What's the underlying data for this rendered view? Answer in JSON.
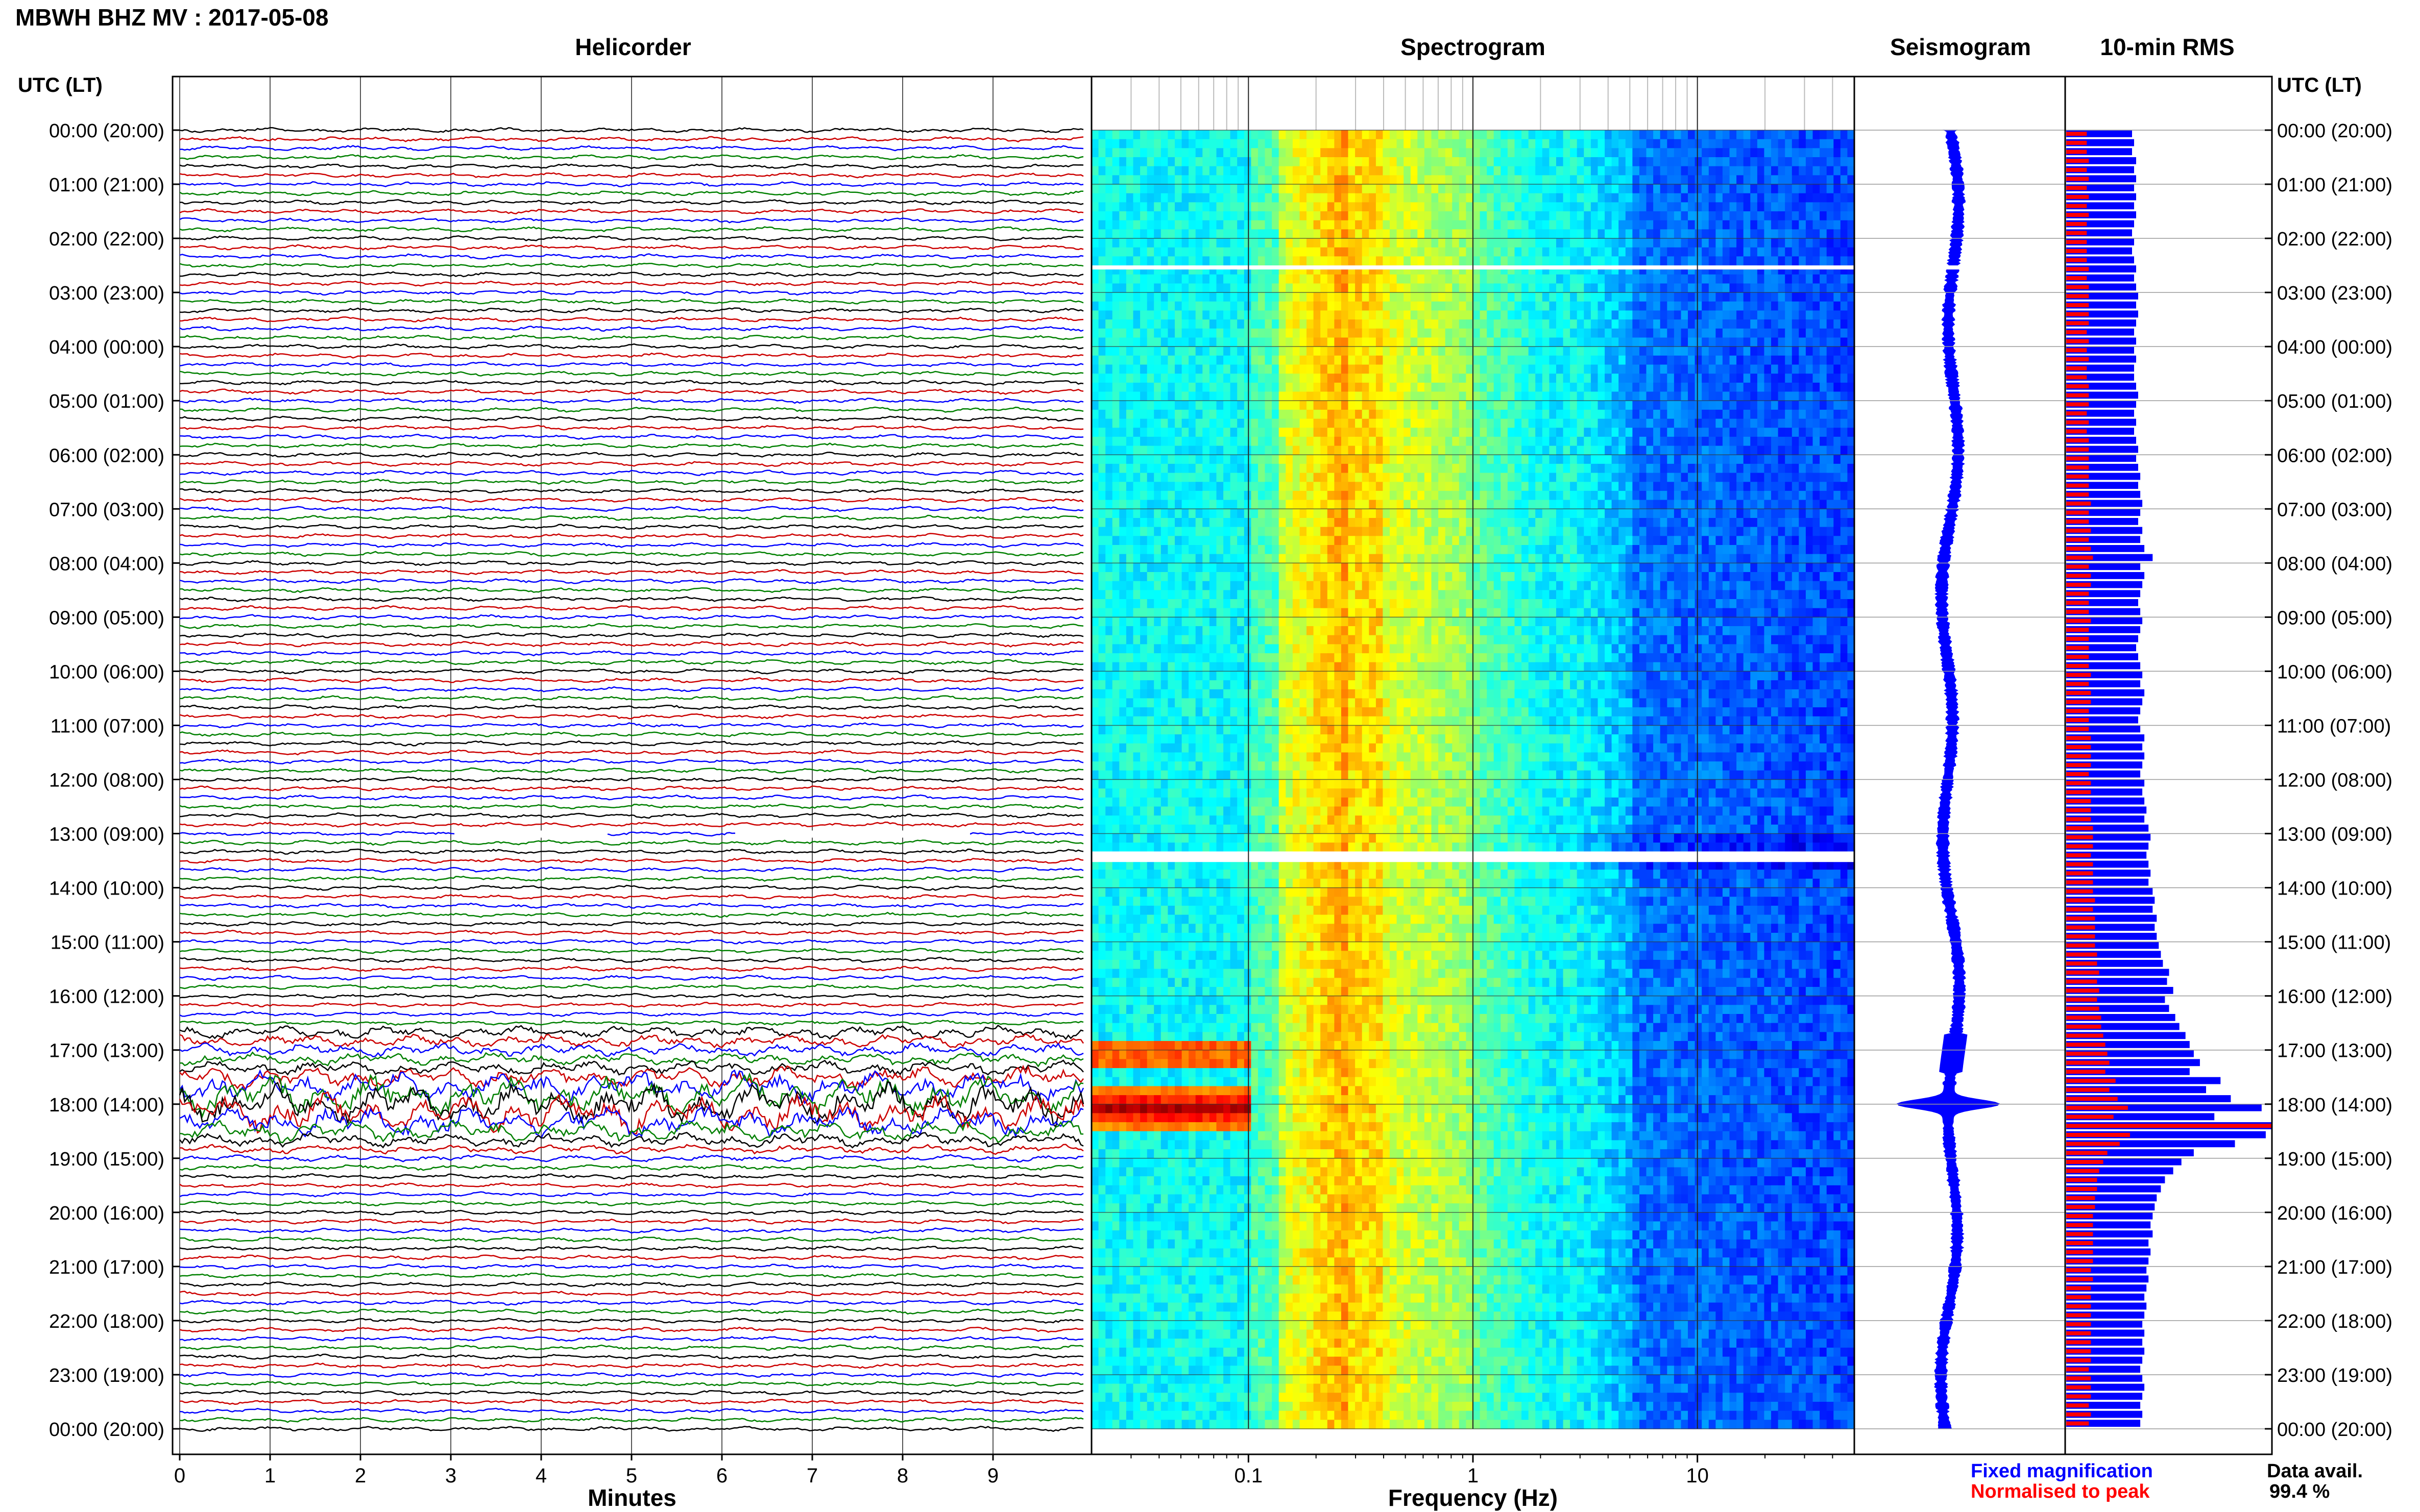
{
  "station_title": "MBWH BHZ MV : 2017-05-08",
  "time_header_left": "UTC (LT)",
  "time_header_right": "UTC (LT)",
  "panels": {
    "helicorder": "Helicorder",
    "spectrogram": "Spectrogram",
    "seismogram": "Seismogram",
    "rms": "10-min RMS"
  },
  "hour_labels": [
    "00:00 (20:00)",
    "01:00 (21:00)",
    "02:00 (22:00)",
    "03:00 (23:00)",
    "04:00 (00:00)",
    "05:00 (01:00)",
    "06:00 (02:00)",
    "07:00 (03:00)",
    "08:00 (04:00)",
    "09:00 (05:00)",
    "10:00 (06:00)",
    "11:00 (07:00)",
    "12:00 (08:00)",
    "13:00 (09:00)",
    "14:00 (10:00)",
    "15:00 (11:00)",
    "16:00 (12:00)",
    "17:00 (13:00)",
    "18:00 (14:00)",
    "19:00 (15:00)",
    "20:00 (16:00)",
    "21:00 (17:00)",
    "22:00 (18:00)",
    "23:00 (19:00)",
    "00:00 (20:00)"
  ],
  "minutes_axis": {
    "label": "Minutes",
    "ticks": [
      "0",
      "1",
      "2",
      "3",
      "4",
      "5",
      "6",
      "7",
      "8",
      "9"
    ]
  },
  "frequency_axis": {
    "label": "Frequency (Hz)",
    "ticks": [
      "0.1",
      "1",
      "10"
    ],
    "scale": "log",
    "range": [
      0.02,
      50
    ]
  },
  "legend": {
    "fixed": "Fixed magnification",
    "normalised": "Normalised to peak",
    "fixed_color": "#0000ff",
    "normalised_color": "#ff0000"
  },
  "data_avail": {
    "label": "Data avail.",
    "value": "99.4 %"
  },
  "chart_data": {
    "type": "heatmap",
    "helicorder": {
      "line_colors": [
        "#000000",
        "#cc0000",
        "#0000ff",
        "#008000"
      ],
      "rows": 144,
      "minutes_per_row": 10,
      "event_hour": 18,
      "gaps_utc": [
        "02:30",
        "13:20"
      ]
    },
    "spectrogram": {
      "colormap": "jet",
      "event": {
        "time_utc": "18:00",
        "freq_hz": [
          0.03,
          0.09
        ]
      },
      "gaps_utc": [
        "02:30",
        "13:20"
      ]
    },
    "rms": {
      "bin_minutes": 10,
      "fixed": [
        0.32,
        0.33,
        0.32,
        0.34,
        0.33,
        0.34,
        0.33,
        0.34,
        0.33,
        0.34,
        0.33,
        0.32,
        0.33,
        0.32,
        0.33,
        0.34,
        0.33,
        0.34,
        0.35,
        0.34,
        0.35,
        0.34,
        0.33,
        0.34,
        0.33,
        0.34,
        0.33,
        0.33,
        0.34,
        0.35,
        0.34,
        0.33,
        0.34,
        0.33,
        0.34,
        0.35,
        0.34,
        0.35,
        0.36,
        0.35,
        0.36,
        0.37,
        0.36,
        0.35,
        0.37,
        0.36,
        0.38,
        0.42,
        0.36,
        0.38,
        0.37,
        0.36,
        0.35,
        0.36,
        0.37,
        0.36,
        0.35,
        0.34,
        0.35,
        0.36,
        0.37,
        0.36,
        0.38,
        0.37,
        0.36,
        0.35,
        0.36,
        0.38,
        0.37,
        0.38,
        0.37,
        0.36,
        0.38,
        0.37,
        0.38,
        0.39,
        0.38,
        0.4,
        0.41,
        0.4,
        0.39,
        0.4,
        0.41,
        0.4,
        0.42,
        0.43,
        0.42,
        0.44,
        0.43,
        0.44,
        0.45,
        0.46,
        0.47,
        0.5,
        0.49,
        0.52,
        0.48,
        0.5,
        0.53,
        0.55,
        0.58,
        0.6,
        0.62,
        0.65,
        0.6,
        0.75,
        0.68,
        0.8,
        0.95,
        0.72,
        1.0,
        0.97,
        0.82,
        0.62,
        0.56,
        0.52,
        0.48,
        0.46,
        0.44,
        0.43,
        0.42,
        0.41,
        0.42,
        0.4,
        0.41,
        0.4,
        0.39,
        0.4,
        0.39,
        0.38,
        0.39,
        0.38,
        0.37,
        0.38,
        0.37,
        0.38,
        0.37,
        0.36,
        0.37,
        0.38,
        0.37,
        0.36,
        0.37,
        0.36
      ],
      "normalised": [
        0.1,
        0.1,
        0.1,
        0.11,
        0.1,
        0.11,
        0.1,
        0.11,
        0.1,
        0.11,
        0.1,
        0.1,
        0.1,
        0.1,
        0.1,
        0.11,
        0.1,
        0.11,
        0.11,
        0.11,
        0.11,
        0.11,
        0.1,
        0.11,
        0.1,
        0.11,
        0.1,
        0.1,
        0.11,
        0.11,
        0.11,
        0.1,
        0.11,
        0.1,
        0.11,
        0.11,
        0.11,
        0.11,
        0.11,
        0.11,
        0.11,
        0.12,
        0.11,
        0.11,
        0.12,
        0.11,
        0.12,
        0.13,
        0.11,
        0.12,
        0.12,
        0.11,
        0.11,
        0.11,
        0.12,
        0.11,
        0.11,
        0.11,
        0.11,
        0.11,
        0.12,
        0.11,
        0.12,
        0.12,
        0.11,
        0.11,
        0.11,
        0.12,
        0.12,
        0.12,
        0.12,
        0.11,
        0.12,
        0.12,
        0.12,
        0.12,
        0.12,
        0.13,
        0.13,
        0.13,
        0.12,
        0.13,
        0.13,
        0.13,
        0.13,
        0.14,
        0.13,
        0.14,
        0.14,
        0.14,
        0.14,
        0.15,
        0.15,
        0.16,
        0.15,
        0.16,
        0.15,
        0.16,
        0.17,
        0.17,
        0.18,
        0.19,
        0.2,
        0.21,
        0.19,
        0.24,
        0.21,
        0.25,
        0.3,
        0.23,
        1.0,
        0.31,
        0.26,
        0.2,
        0.18,
        0.16,
        0.15,
        0.15,
        0.14,
        0.14,
        0.13,
        0.13,
        0.13,
        0.13,
        0.13,
        0.13,
        0.12,
        0.13,
        0.12,
        0.12,
        0.12,
        0.12,
        0.12,
        0.12,
        0.12,
        0.12,
        0.12,
        0.11,
        0.12,
        0.12,
        0.12,
        0.11,
        0.12,
        0.11
      ]
    }
  }
}
